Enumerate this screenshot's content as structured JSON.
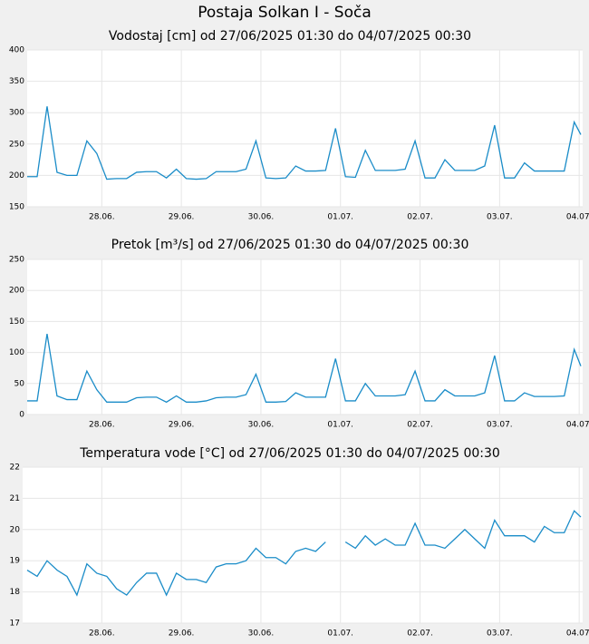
{
  "title": "Postaja Solkan I - Soča",
  "chart_data": [
    {
      "type": "line",
      "title": "Vodostaj [cm] od 27/06/2025 01:30 do 04/07/2025 00:30",
      "color": "#1a8cc8",
      "grid": true,
      "xlim": [
        "27/06/2025 01:30",
        "04/07/2025 00:30"
      ],
      "xticks": [
        {
          "value": "28/06/2025 00:00",
          "label": "28.06."
        },
        {
          "value": "29/06/2025 00:00",
          "label": "29.06."
        },
        {
          "value": "30/06/2025 00:00",
          "label": "30.06."
        },
        {
          "value": "01/07/2025 00:00",
          "label": "01.07."
        },
        {
          "value": "02/07/2025 00:00",
          "label": "02.07."
        },
        {
          "value": "03/07/2025 00:00",
          "label": "03.07."
        },
        {
          "value": "04/07/2025 00:00",
          "label": "04.07."
        }
      ],
      "ylim": [
        150,
        400
      ],
      "yticks": [
        150,
        200,
        250,
        300,
        350,
        400
      ],
      "x": [
        "27/06/2025 01:30",
        "27/06/2025 04:30",
        "27/06/2025 07:30",
        "27/06/2025 10:30",
        "27/06/2025 13:30",
        "27/06/2025 16:30",
        "27/06/2025 19:30",
        "27/06/2025 22:30",
        "28/06/2025 01:30",
        "28/06/2025 04:30",
        "28/06/2025 07:30",
        "28/06/2025 10:30",
        "28/06/2025 13:30",
        "28/06/2025 16:30",
        "28/06/2025 19:30",
        "28/06/2025 22:30",
        "29/06/2025 01:30",
        "29/06/2025 04:30",
        "29/06/2025 07:30",
        "29/06/2025 10:30",
        "29/06/2025 13:30",
        "29/06/2025 16:30",
        "29/06/2025 19:30",
        "29/06/2025 22:30",
        "30/06/2025 01:30",
        "30/06/2025 04:30",
        "30/06/2025 07:30",
        "30/06/2025 10:30",
        "30/06/2025 13:30",
        "30/06/2025 16:30",
        "30/06/2025 19:30",
        "30/06/2025 22:30",
        "01/07/2025 01:30",
        "01/07/2025 04:30",
        "01/07/2025 07:30",
        "01/07/2025 10:30",
        "01/07/2025 13:30",
        "01/07/2025 16:30",
        "01/07/2025 19:30",
        "01/07/2025 22:30",
        "02/07/2025 01:30",
        "02/07/2025 04:30",
        "02/07/2025 07:30",
        "02/07/2025 10:30",
        "02/07/2025 13:30",
        "02/07/2025 16:30",
        "02/07/2025 19:30",
        "02/07/2025 22:30",
        "03/07/2025 01:30",
        "03/07/2025 04:30",
        "03/07/2025 07:30",
        "03/07/2025 10:30",
        "03/07/2025 13:30",
        "03/07/2025 16:30",
        "03/07/2025 19:30",
        "03/07/2025 22:30",
        "04/07/2025 00:30"
      ],
      "values": [
        198,
        198,
        310,
        205,
        200,
        200,
        255,
        235,
        194,
        195,
        195,
        205,
        206,
        206,
        196,
        210,
        195,
        194,
        195,
        206,
        206,
        206,
        210,
        255,
        196,
        195,
        196,
        215,
        207,
        207,
        208,
        275,
        198,
        197,
        240,
        208,
        208,
        208,
        210,
        255,
        196,
        196,
        225,
        208,
        208,
        208,
        215,
        280,
        196,
        196,
        220,
        207,
        207,
        207,
        207,
        285,
        265
      ]
    },
    {
      "type": "line",
      "title": "Pretok [m³/s] od 27/06/2025 01:30 do 04/07/2025 00:30",
      "color": "#1a8cc8",
      "grid": true,
      "xlim": [
        "27/06/2025 01:30",
        "04/07/2025 00:30"
      ],
      "xticks": [
        {
          "value": "28/06/2025 00:00",
          "label": "28.06."
        },
        {
          "value": "29/06/2025 00:00",
          "label": "29.06."
        },
        {
          "value": "30/06/2025 00:00",
          "label": "30.06."
        },
        {
          "value": "01/07/2025 00:00",
          "label": "01.07."
        },
        {
          "value": "02/07/2025 00:00",
          "label": "02.07."
        },
        {
          "value": "03/07/2025 00:00",
          "label": "03.07."
        },
        {
          "value": "04/07/2025 00:00",
          "label": "04.07."
        }
      ],
      "ylim": [
        0,
        250
      ],
      "yticks": [
        0,
        50,
        100,
        150,
        200,
        250
      ],
      "x": [
        "27/06/2025 01:30",
        "27/06/2025 04:30",
        "27/06/2025 07:30",
        "27/06/2025 10:30",
        "27/06/2025 13:30",
        "27/06/2025 16:30",
        "27/06/2025 19:30",
        "27/06/2025 22:30",
        "28/06/2025 01:30",
        "28/06/2025 04:30",
        "28/06/2025 07:30",
        "28/06/2025 10:30",
        "28/06/2025 13:30",
        "28/06/2025 16:30",
        "28/06/2025 19:30",
        "28/06/2025 22:30",
        "29/06/2025 01:30",
        "29/06/2025 04:30",
        "29/06/2025 07:30",
        "29/06/2025 10:30",
        "29/06/2025 13:30",
        "29/06/2025 16:30",
        "29/06/2025 19:30",
        "29/06/2025 22:30",
        "30/06/2025 01:30",
        "30/06/2025 04:30",
        "30/06/2025 07:30",
        "30/06/2025 10:30",
        "30/06/2025 13:30",
        "30/06/2025 16:30",
        "30/06/2025 19:30",
        "30/06/2025 22:30",
        "01/07/2025 01:30",
        "01/07/2025 04:30",
        "01/07/2025 07:30",
        "01/07/2025 10:30",
        "01/07/2025 13:30",
        "01/07/2025 16:30",
        "01/07/2025 19:30",
        "01/07/2025 22:30",
        "02/07/2025 01:30",
        "02/07/2025 04:30",
        "02/07/2025 07:30",
        "02/07/2025 10:30",
        "02/07/2025 13:30",
        "02/07/2025 16:30",
        "02/07/2025 19:30",
        "02/07/2025 22:30",
        "03/07/2025 01:30",
        "03/07/2025 04:30",
        "03/07/2025 07:30",
        "03/07/2025 10:30",
        "03/07/2025 13:30",
        "03/07/2025 16:30",
        "03/07/2025 19:30",
        "03/07/2025 22:30",
        "04/07/2025 00:30"
      ],
      "values": [
        22,
        22,
        130,
        30,
        24,
        24,
        70,
        40,
        20,
        20,
        20,
        27,
        28,
        28,
        20,
        30,
        20,
        20,
        22,
        27,
        28,
        28,
        32,
        65,
        20,
        20,
        21,
        35,
        28,
        28,
        28,
        90,
        22,
        22,
        50,
        30,
        30,
        30,
        32,
        70,
        22,
        22,
        40,
        30,
        30,
        30,
        35,
        95,
        22,
        22,
        35,
        29,
        29,
        29,
        30,
        105,
        78
      ]
    },
    {
      "type": "line",
      "title": "Temperatura vode [°C] od 27/06/2025 01:30 do 04/07/2025 00:30",
      "color": "#1a8cc8",
      "grid": true,
      "xlim": [
        "27/06/2025 01:30",
        "04/07/2025 00:30"
      ],
      "xticks": [
        {
          "value": "28/06/2025 00:00",
          "label": "28.06."
        },
        {
          "value": "29/06/2025 00:00",
          "label": "29.06."
        },
        {
          "value": "30/06/2025 00:00",
          "label": "30.06."
        },
        {
          "value": "01/07/2025 00:00",
          "label": "01.07."
        },
        {
          "value": "02/07/2025 00:00",
          "label": "02.07."
        },
        {
          "value": "03/07/2025 00:00",
          "label": "03.07."
        },
        {
          "value": "04/07/2025 00:00",
          "label": "04.07."
        }
      ],
      "ylim": [
        17,
        22
      ],
      "yticks": [
        17,
        18,
        19,
        20,
        21,
        22
      ],
      "x": [
        "27/06/2025 01:30",
        "27/06/2025 04:30",
        "27/06/2025 07:30",
        "27/06/2025 10:30",
        "27/06/2025 13:30",
        "27/06/2025 16:30",
        "27/06/2025 19:30",
        "27/06/2025 22:30",
        "28/06/2025 01:30",
        "28/06/2025 04:30",
        "28/06/2025 07:30",
        "28/06/2025 10:30",
        "28/06/2025 13:30",
        "28/06/2025 16:30",
        "28/06/2025 19:30",
        "28/06/2025 22:30",
        "29/06/2025 01:30",
        "29/06/2025 04:30",
        "29/06/2025 07:30",
        "29/06/2025 10:30",
        "29/06/2025 13:30",
        "29/06/2025 16:30",
        "29/06/2025 19:30",
        "29/06/2025 22:30",
        "30/06/2025 01:30",
        "30/06/2025 04:30",
        "30/06/2025 07:30",
        "30/06/2025 10:30",
        "30/06/2025 13:30",
        "30/06/2025 16:30",
        "30/06/2025 19:30",
        "30/06/2025 22:30",
        "01/07/2025 01:30",
        "01/07/2025 04:30",
        "01/07/2025 07:30",
        "01/07/2025 10:30",
        "01/07/2025 13:30",
        "01/07/2025 16:30",
        "01/07/2025 19:30",
        "01/07/2025 22:30",
        "02/07/2025 01:30",
        "02/07/2025 04:30",
        "02/07/2025 07:30",
        "02/07/2025 10:30",
        "02/07/2025 13:30",
        "02/07/2025 16:30",
        "02/07/2025 19:30",
        "02/07/2025 22:30",
        "03/07/2025 01:30",
        "03/07/2025 04:30",
        "03/07/2025 07:30",
        "03/07/2025 10:30",
        "03/07/2025 13:30",
        "03/07/2025 16:30",
        "03/07/2025 19:30",
        "03/07/2025 22:30",
        "04/07/2025 00:30"
      ],
      "values": [
        18.7,
        18.5,
        19.0,
        18.7,
        18.5,
        17.9,
        18.9,
        18.6,
        18.5,
        18.1,
        17.9,
        18.3,
        18.6,
        18.6,
        17.9,
        18.6,
        18.4,
        18.4,
        18.3,
        18.8,
        18.9,
        18.9,
        19.0,
        19.4,
        19.1,
        19.1,
        18.9,
        19.3,
        19.4,
        19.3,
        19.6,
        null,
        19.6,
        19.4,
        19.8,
        19.5,
        19.7,
        19.5,
        19.5,
        20.2,
        19.5,
        19.5,
        19.4,
        19.7,
        20.0,
        19.7,
        19.4,
        20.3,
        19.8,
        19.8,
        19.8,
        19.6,
        20.1,
        19.9,
        19.9,
        20.6,
        20.4
      ]
    }
  ]
}
